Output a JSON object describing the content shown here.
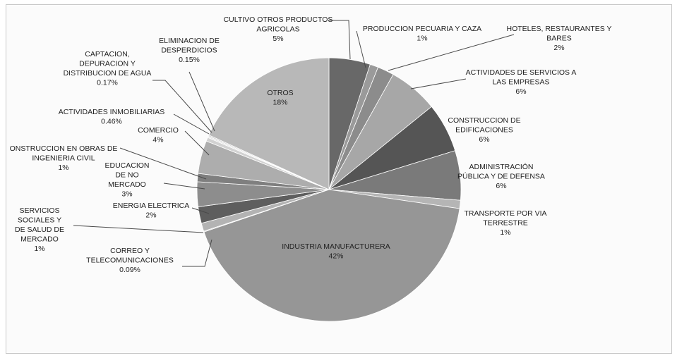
{
  "chart_data": {
    "type": "pie",
    "title": "",
    "slices": [
      {
        "label": "CULTIVO OTROS PRODUCTOS AGRICOLAS",
        "value_label": "5%",
        "value": 5.0,
        "color": "#686868"
      },
      {
        "label": "PRODUCCION PECUARIA Y CAZA",
        "value_label": "1%",
        "value": 1.0,
        "color": "#9a9a9a"
      },
      {
        "label": "HOTELES, RESTAURANTES Y BARES",
        "value_label": "2%",
        "value": 2.0,
        "color": "#8c8c8c"
      },
      {
        "label": "ACTIVIDADES DE SERVICIOS A LAS EMPRESAS",
        "value_label": "6%",
        "value": 6.0,
        "color": "#a7a7a7"
      },
      {
        "label": "CONSTRUCCION DE EDIFICACIONES",
        "value_label": "6%",
        "value": 6.0,
        "color": "#555555"
      },
      {
        "label": "ADMINISTRACIÓN PÚBLICA Y DE DEFENSA",
        "value_label": "6%",
        "value": 6.0,
        "color": "#7a7a7a"
      },
      {
        "label": "TRANSPORTE POR VIA TERRESTRE",
        "value_label": "1%",
        "value": 1.0,
        "color": "#b5b5b5"
      },
      {
        "label": "INDUSTRIA MANUFACTURERA",
        "value_label": "42%",
        "value": 42.0,
        "color": "#969696"
      },
      {
        "label": "CORREO Y TELECOMUNICACIONES",
        "value_label": "0.09%",
        "value": 0.09,
        "color": "#a3a3a3"
      },
      {
        "label": "SERVICIOS SOCIALES Y DE SALUD DE MERCADO",
        "value_label": "1%",
        "value": 1.0,
        "color": "#b3b3b3"
      },
      {
        "label": "ENERGIA ELECTRICA",
        "value_label": "2%",
        "value": 2.0,
        "color": "#5e5e5e"
      },
      {
        "label": "EDUCACION DE NO MERCADO",
        "value_label": "3%",
        "value": 3.0,
        "color": "#8d8d8d"
      },
      {
        "label": "CONSTRUCCION EN OBRAS DE INGENIERIA CIVIL",
        "value_label": "1%",
        "value": 1.0,
        "color": "#7f7f7f"
      },
      {
        "label": "COMERCIO",
        "value_label": "4%",
        "value": 4.0,
        "color": "#adadad"
      },
      {
        "label": "ACTIVIDADES INMOBILIARIAS",
        "value_label": "0.46%",
        "value": 0.46,
        "color": "#d2d2d2"
      },
      {
        "label": "CAPTACION, DEPURACION Y DISTRIBUCION DE AGUA",
        "value_label": "0.17%",
        "value": 0.17,
        "color": "#e3e3e3"
      },
      {
        "label": "ELIMINACION DE DESPERDICIOS",
        "value_label": "0.15%",
        "value": 0.15,
        "color": "#cfcfcf"
      },
      {
        "label": "OTROS",
        "value_label": "18%",
        "value": 18.0,
        "color": "#b8b8b8"
      }
    ]
  }
}
